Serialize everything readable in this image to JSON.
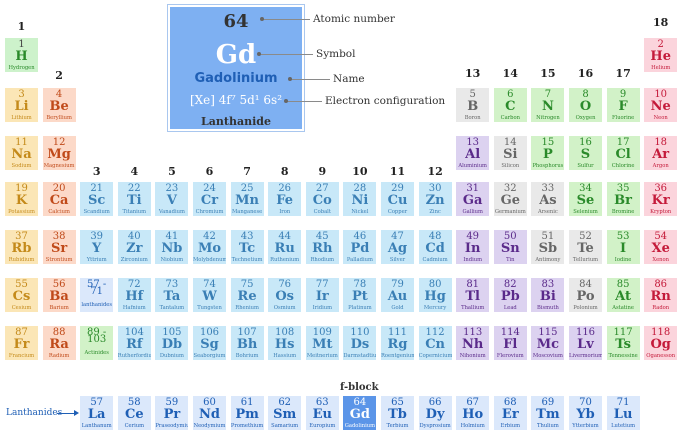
{
  "legend": {
    "number": "64",
    "symbol": "Gd",
    "name": "Gadolinium",
    "config": "[Xe] 4f⁷ 5d¹ 6s²",
    "category": "Lanthanide",
    "callouts": {
      "number": "Atomic number",
      "symbol": "Symbol",
      "name": "Name",
      "config": "Electron configuration"
    }
  },
  "groups": [
    "1",
    "2",
    "3",
    "4",
    "5",
    "6",
    "7",
    "8",
    "9",
    "10",
    "11",
    "12",
    "13",
    "14",
    "15",
    "16",
    "17",
    "18"
  ],
  "fblock_label": "f-block",
  "lanthanides_label": "Lanthanides",
  "colors": {
    "hydrogen": {
      "bg": "#cdf2cb",
      "num": "#444",
      "sym": "#2a8a2a",
      "name": "#2a8a2a"
    },
    "alkali": {
      "bg": "#fbe6b6",
      "num": "#c48a1a",
      "sym": "#c48a1a",
      "name": "#c48a1a"
    },
    "alkaline": {
      "bg": "#fcd9c8",
      "num": "#c04a1a",
      "sym": "#c04a1a",
      "name": "#c04a1a"
    },
    "transition": {
      "bg": "#c8e8f8",
      "num": "#3a7fb5",
      "sym": "#3a7fb5",
      "name": "#3a7fb5"
    },
    "post": {
      "bg": "#dcd2f0",
      "num": "#5a2a8a",
      "sym": "#5a2a8a",
      "name": "#5a2a8a"
    },
    "metalloid": {
      "bg": "#e9e9e9",
      "num": "#666",
      "sym": "#666",
      "name": "#666"
    },
    "nonmetal": {
      "bg": "#d2f2c8",
      "num": "#2a8a2a",
      "sym": "#2a8a2a",
      "name": "#2a8a2a"
    },
    "halogen": {
      "bg": "#d2f2c8",
      "num": "#2a8a2a",
      "sym": "#2a8a2a",
      "name": "#2a8a2a"
    },
    "noble": {
      "bg": "#fbd4dc",
      "num": "#c41a3a",
      "sym": "#c41a3a",
      "name": "#c41a3a"
    },
    "lanthanide": {
      "bg": "#dbe8fb",
      "num": "#1f5fb5",
      "sym": "#1f5fb5",
      "name": "#1f5fb5"
    },
    "highlight": {
      "bg": "#5b95e8",
      "num": "#fff",
      "sym": "#fff",
      "name": "#fff"
    }
  },
  "elements": [
    {
      "n": "1",
      "s": "H",
      "name": "Hydrogen",
      "r": 1,
      "c": 1,
      "cat": "hydrogen"
    },
    {
      "n": "2",
      "s": "He",
      "name": "Helium",
      "r": 1,
      "c": 18,
      "cat": "noble"
    },
    {
      "n": "3",
      "s": "Li",
      "name": "Lithium",
      "r": 2,
      "c": 1,
      "cat": "alkali"
    },
    {
      "n": "4",
      "s": "Be",
      "name": "Beryllium",
      "r": 2,
      "c": 2,
      "cat": "alkaline"
    },
    {
      "n": "5",
      "s": "B",
      "name": "Boron",
      "r": 2,
      "c": 13,
      "cat": "metalloid"
    },
    {
      "n": "6",
      "s": "C",
      "name": "Carbon",
      "r": 2,
      "c": 14,
      "cat": "nonmetal"
    },
    {
      "n": "7",
      "s": "N",
      "name": "Nitrogen",
      "r": 2,
      "c": 15,
      "cat": "nonmetal"
    },
    {
      "n": "8",
      "s": "O",
      "name": "Oxygen",
      "r": 2,
      "c": 16,
      "cat": "nonmetal"
    },
    {
      "n": "9",
      "s": "F",
      "name": "Fluorine",
      "r": 2,
      "c": 17,
      "cat": "halogen"
    },
    {
      "n": "10",
      "s": "Ne",
      "name": "Neon",
      "r": 2,
      "c": 18,
      "cat": "noble"
    },
    {
      "n": "11",
      "s": "Na",
      "name": "Sodium",
      "r": 3,
      "c": 1,
      "cat": "alkali"
    },
    {
      "n": "12",
      "s": "Mg",
      "name": "Magnesium",
      "r": 3,
      "c": 2,
      "cat": "alkaline"
    },
    {
      "n": "13",
      "s": "Al",
      "name": "Aluminium",
      "r": 3,
      "c": 13,
      "cat": "post"
    },
    {
      "n": "14",
      "s": "Si",
      "name": "Silicon",
      "r": 3,
      "c": 14,
      "cat": "metalloid"
    },
    {
      "n": "15",
      "s": "P",
      "name": "Phosphorus",
      "r": 3,
      "c": 15,
      "cat": "nonmetal"
    },
    {
      "n": "16",
      "s": "S",
      "name": "Sulfur",
      "r": 3,
      "c": 16,
      "cat": "nonmetal"
    },
    {
      "n": "17",
      "s": "Cl",
      "name": "Chlorine",
      "r": 3,
      "c": 17,
      "cat": "halogen"
    },
    {
      "n": "18",
      "s": "Ar",
      "name": "Argon",
      "r": 3,
      "c": 18,
      "cat": "noble"
    },
    {
      "n": "19",
      "s": "K",
      "name": "Potassium",
      "r": 4,
      "c": 1,
      "cat": "alkali"
    },
    {
      "n": "20",
      "s": "Ca",
      "name": "Calcium",
      "r": 4,
      "c": 2,
      "cat": "alkaline"
    },
    {
      "n": "21",
      "s": "Sc",
      "name": "Scandium",
      "r": 4,
      "c": 3,
      "cat": "transition"
    },
    {
      "n": "22",
      "s": "Ti",
      "name": "Titanium",
      "r": 4,
      "c": 4,
      "cat": "transition"
    },
    {
      "n": "23",
      "s": "V",
      "name": "Vanadium",
      "r": 4,
      "c": 5,
      "cat": "transition"
    },
    {
      "n": "24",
      "s": "Cr",
      "name": "Chromium",
      "r": 4,
      "c": 6,
      "cat": "transition"
    },
    {
      "n": "25",
      "s": "Mn",
      "name": "Manganese",
      "r": 4,
      "c": 7,
      "cat": "transition"
    },
    {
      "n": "26",
      "s": "Fe",
      "name": "Iron",
      "r": 4,
      "c": 8,
      "cat": "transition"
    },
    {
      "n": "27",
      "s": "Co",
      "name": "Cobalt",
      "r": 4,
      "c": 9,
      "cat": "transition"
    },
    {
      "n": "28",
      "s": "Ni",
      "name": "Nickel",
      "r": 4,
      "c": 10,
      "cat": "transition"
    },
    {
      "n": "29",
      "s": "Cu",
      "name": "Copper",
      "r": 4,
      "c": 11,
      "cat": "transition"
    },
    {
      "n": "30",
      "s": "Zn",
      "name": "Zinc",
      "r": 4,
      "c": 12,
      "cat": "transition"
    },
    {
      "n": "31",
      "s": "Ga",
      "name": "Gallium",
      "r": 4,
      "c": 13,
      "cat": "post"
    },
    {
      "n": "32",
      "s": "Ge",
      "name": "Germanium",
      "r": 4,
      "c": 14,
      "cat": "metalloid"
    },
    {
      "n": "33",
      "s": "As",
      "name": "Arsenic",
      "r": 4,
      "c": 15,
      "cat": "metalloid"
    },
    {
      "n": "34",
      "s": "Se",
      "name": "Selenium",
      "r": 4,
      "c": 16,
      "cat": "nonmetal"
    },
    {
      "n": "35",
      "s": "Br",
      "name": "Bromine",
      "r": 4,
      "c": 17,
      "cat": "halogen"
    },
    {
      "n": "36",
      "s": "Kr",
      "name": "Krypton",
      "r": 4,
      "c": 18,
      "cat": "noble"
    },
    {
      "n": "37",
      "s": "Rb",
      "name": "Rubidium",
      "r": 5,
      "c": 1,
      "cat": "alkali"
    },
    {
      "n": "38",
      "s": "Sr",
      "name": "Strontium",
      "r": 5,
      "c": 2,
      "cat": "alkaline"
    },
    {
      "n": "39",
      "s": "Y",
      "name": "Yttrium",
      "r": 5,
      "c": 3,
      "cat": "transition"
    },
    {
      "n": "40",
      "s": "Zr",
      "name": "Zirconium",
      "r": 5,
      "c": 4,
      "cat": "transition"
    },
    {
      "n": "41",
      "s": "Nb",
      "name": "Niobium",
      "r": 5,
      "c": 5,
      "cat": "transition"
    },
    {
      "n": "42",
      "s": "Mo",
      "name": "Molybdenum",
      "r": 5,
      "c": 6,
      "cat": "transition"
    },
    {
      "n": "43",
      "s": "Tc",
      "name": "Technetium",
      "r": 5,
      "c": 7,
      "cat": "transition"
    },
    {
      "n": "44",
      "s": "Ru",
      "name": "Ruthenium",
      "r": 5,
      "c": 8,
      "cat": "transition"
    },
    {
      "n": "45",
      "s": "Rh",
      "name": "Rhodium",
      "r": 5,
      "c": 9,
      "cat": "transition"
    },
    {
      "n": "46",
      "s": "Pd",
      "name": "Palladium",
      "r": 5,
      "c": 10,
      "cat": "transition"
    },
    {
      "n": "47",
      "s": "Ag",
      "name": "Silver",
      "r": 5,
      "c": 11,
      "cat": "transition"
    },
    {
      "n": "48",
      "s": "Cd",
      "name": "Cadmium",
      "r": 5,
      "c": 12,
      "cat": "transition"
    },
    {
      "n": "49",
      "s": "In",
      "name": "Indium",
      "r": 5,
      "c": 13,
      "cat": "post"
    },
    {
      "n": "50",
      "s": "Sn",
      "name": "Tin",
      "r": 5,
      "c": 14,
      "cat": "post"
    },
    {
      "n": "51",
      "s": "Sb",
      "name": "Antimony",
      "r": 5,
      "c": 15,
      "cat": "metalloid"
    },
    {
      "n": "52",
      "s": "Te",
      "name": "Tellurium",
      "r": 5,
      "c": 16,
      "cat": "metalloid"
    },
    {
      "n": "53",
      "s": "I",
      "name": "Iodine",
      "r": 5,
      "c": 17,
      "cat": "halogen"
    },
    {
      "n": "54",
      "s": "Xe",
      "name": "Xenon",
      "r": 5,
      "c": 18,
      "cat": "noble"
    },
    {
      "n": "55",
      "s": "Cs",
      "name": "Cesium",
      "r": 6,
      "c": 1,
      "cat": "alkali"
    },
    {
      "n": "56",
      "s": "Ba",
      "name": "Barium",
      "r": 6,
      "c": 2,
      "cat": "alkaline"
    },
    {
      "n": "57 -",
      "s": "71",
      "name": "lanthanides",
      "r": 6,
      "c": 3,
      "cat": "lanthanide",
      "sp": true
    },
    {
      "n": "72",
      "s": "Hf",
      "name": "Hafnium",
      "r": 6,
      "c": 4,
      "cat": "transition"
    },
    {
      "n": "73",
      "s": "Ta",
      "name": "Tantalum",
      "r": 6,
      "c": 5,
      "cat": "transition"
    },
    {
      "n": "74",
      "s": "W",
      "name": "Tungsten",
      "r": 6,
      "c": 6,
      "cat": "transition"
    },
    {
      "n": "75",
      "s": "Re",
      "name": "Rhenium",
      "r": 6,
      "c": 7,
      "cat": "transition"
    },
    {
      "n": "76",
      "s": "Os",
      "name": "Osmium",
      "r": 6,
      "c": 8,
      "cat": "transition"
    },
    {
      "n": "77",
      "s": "Ir",
      "name": "Iridium",
      "r": 6,
      "c": 9,
      "cat": "transition"
    },
    {
      "n": "78",
      "s": "Pt",
      "name": "Platinum",
      "r": 6,
      "c": 10,
      "cat": "transition"
    },
    {
      "n": "79",
      "s": "Au",
      "name": "Gold",
      "r": 6,
      "c": 11,
      "cat": "transition"
    },
    {
      "n": "80",
      "s": "Hg",
      "name": "Mercury",
      "r": 6,
      "c": 12,
      "cat": "transition"
    },
    {
      "n": "81",
      "s": "Tl",
      "name": "Thallium",
      "r": 6,
      "c": 13,
      "cat": "post"
    },
    {
      "n": "82",
      "s": "Pb",
      "name": "Lead",
      "r": 6,
      "c": 14,
      "cat": "post"
    },
    {
      "n": "83",
      "s": "Bi",
      "name": "Bismuth",
      "r": 6,
      "c": 15,
      "cat": "post"
    },
    {
      "n": "84",
      "s": "Po",
      "name": "Polonium",
      "r": 6,
      "c": 16,
      "cat": "metalloid"
    },
    {
      "n": "85",
      "s": "At",
      "name": "Astatine",
      "r": 6,
      "c": 17,
      "cat": "halogen"
    },
    {
      "n": "86",
      "s": "Rn",
      "name": "Radon",
      "r": 6,
      "c": 18,
      "cat": "noble"
    },
    {
      "n": "87",
      "s": "Fr",
      "name": "Francium",
      "r": 7,
      "c": 1,
      "cat": "alkali"
    },
    {
      "n": "88",
      "s": "Ra",
      "name": "Radium",
      "r": 7,
      "c": 2,
      "cat": "alkaline"
    },
    {
      "n": "89 -",
      "s": "103",
      "name": "Actinides",
      "r": 7,
      "c": 3,
      "cat": "nonmetal",
      "sp": true
    },
    {
      "n": "104",
      "s": "Rf",
      "name": "Rutherfordium",
      "r": 7,
      "c": 4,
      "cat": "transition"
    },
    {
      "n": "105",
      "s": "Db",
      "name": "Dubnium",
      "r": 7,
      "c": 5,
      "cat": "transition"
    },
    {
      "n": "106",
      "s": "Sg",
      "name": "Seaborgium",
      "r": 7,
      "c": 6,
      "cat": "transition"
    },
    {
      "n": "107",
      "s": "Bh",
      "name": "Bohrium",
      "r": 7,
      "c": 7,
      "cat": "transition"
    },
    {
      "n": "108",
      "s": "Hs",
      "name": "Hassium",
      "r": 7,
      "c": 8,
      "cat": "transition"
    },
    {
      "n": "109",
      "s": "Mt",
      "name": "Meitnerium",
      "r": 7,
      "c": 9,
      "cat": "transition"
    },
    {
      "n": "110",
      "s": "Ds",
      "name": "Darmstadtium",
      "r": 7,
      "c": 10,
      "cat": "transition"
    },
    {
      "n": "111",
      "s": "Rg",
      "name": "Roentgenium",
      "r": 7,
      "c": 11,
      "cat": "transition"
    },
    {
      "n": "112",
      "s": "Cn",
      "name": "Copernicium",
      "r": 7,
      "c": 12,
      "cat": "transition"
    },
    {
      "n": "113",
      "s": "Nh",
      "name": "Nihonium",
      "r": 7,
      "c": 13,
      "cat": "post"
    },
    {
      "n": "114",
      "s": "Fl",
      "name": "Flerovium",
      "r": 7,
      "c": 14,
      "cat": "post"
    },
    {
      "n": "115",
      "s": "Mc",
      "name": "Moscovium",
      "r": 7,
      "c": 15,
      "cat": "post"
    },
    {
      "n": "116",
      "s": "Lv",
      "name": "Livermorium",
      "r": 7,
      "c": 16,
      "cat": "post"
    },
    {
      "n": "117",
      "s": "Ts",
      "name": "Tennessine",
      "r": 7,
      "c": 17,
      "cat": "halogen"
    },
    {
      "n": "118",
      "s": "Og",
      "name": "Oganesson",
      "r": 7,
      "c": 18,
      "cat": "noble"
    },
    {
      "n": "57",
      "s": "La",
      "name": "Lanthanum",
      "r": 8,
      "c": 3,
      "cat": "lanthanide"
    },
    {
      "n": "58",
      "s": "Ce",
      "name": "Cerium",
      "r": 8,
      "c": 4,
      "cat": "lanthanide"
    },
    {
      "n": "59",
      "s": "Pr",
      "name": "Praseodymium",
      "r": 8,
      "c": 5,
      "cat": "lanthanide"
    },
    {
      "n": "60",
      "s": "Nd",
      "name": "Neodymium",
      "r": 8,
      "c": 6,
      "cat": "lanthanide"
    },
    {
      "n": "61",
      "s": "Pm",
      "name": "Promethium",
      "r": 8,
      "c": 7,
      "cat": "lanthanide"
    },
    {
      "n": "62",
      "s": "Sm",
      "name": "Samarium",
      "r": 8,
      "c": 8,
      "cat": "lanthanide"
    },
    {
      "n": "63",
      "s": "Eu",
      "name": "Europium",
      "r": 8,
      "c": 9,
      "cat": "lanthanide"
    },
    {
      "n": "64",
      "s": "Gd",
      "name": "Gadolinium",
      "r": 8,
      "c": 10,
      "cat": "highlight"
    },
    {
      "n": "65",
      "s": "Tb",
      "name": "Terbium",
      "r": 8,
      "c": 11,
      "cat": "lanthanide"
    },
    {
      "n": "66",
      "s": "Dy",
      "name": "Dysprosium",
      "r": 8,
      "c": 12,
      "cat": "lanthanide"
    },
    {
      "n": "67",
      "s": "Ho",
      "name": "Holmium",
      "r": 8,
      "c": 13,
      "cat": "lanthanide"
    },
    {
      "n": "68",
      "s": "Er",
      "name": "Erbium",
      "r": 8,
      "c": 14,
      "cat": "lanthanide"
    },
    {
      "n": "69",
      "s": "Tm",
      "name": "Thulium",
      "r": 8,
      "c": 15,
      "cat": "lanthanide"
    },
    {
      "n": "70",
      "s": "Yb",
      "name": "Ytterbium",
      "r": 8,
      "c": 16,
      "cat": "lanthanide"
    },
    {
      "n": "71",
      "s": "Lu",
      "name": "Lutetium",
      "r": 8,
      "c": 17,
      "cat": "lanthanide"
    }
  ]
}
